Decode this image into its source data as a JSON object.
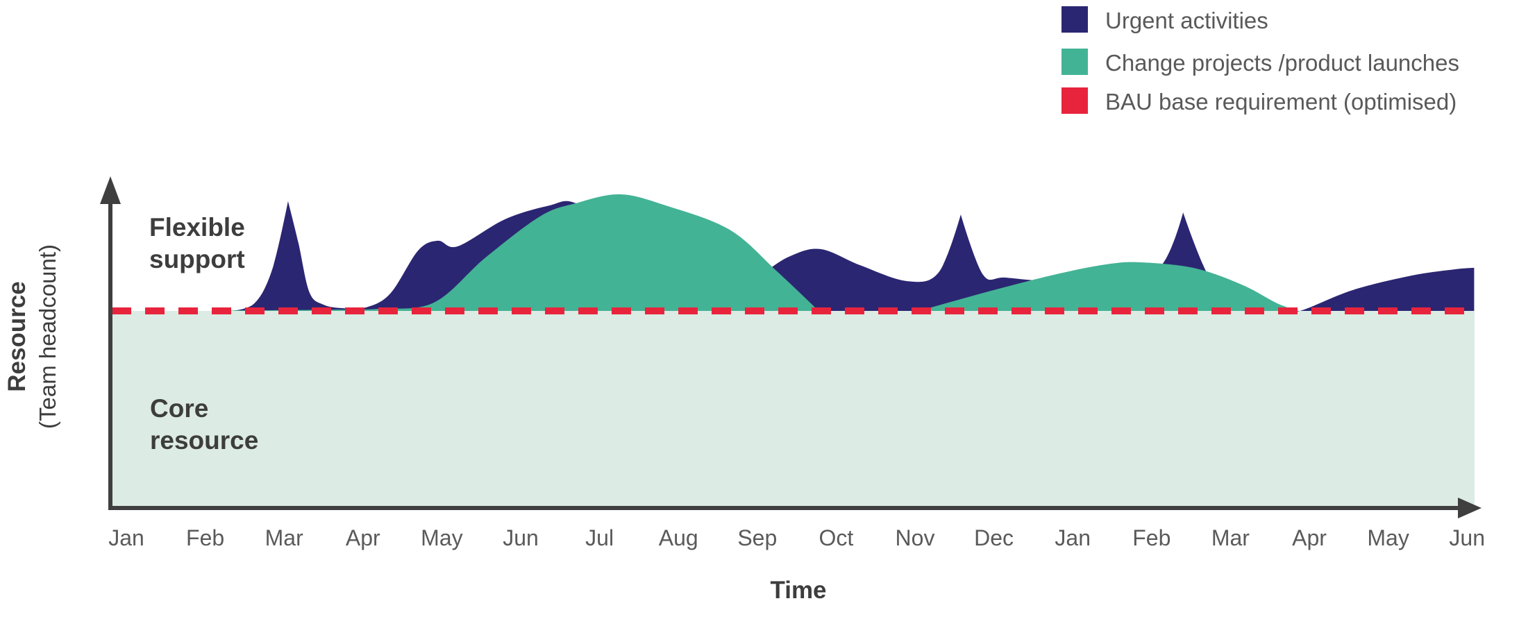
{
  "legend": {
    "items": [
      {
        "label": "Urgent activities",
        "color": "#2b2672"
      },
      {
        "label": "Change projects /product launches",
        "color": "#43b395"
      },
      {
        "label": "BAU base requirement (optimised)",
        "color": "#e8243c"
      }
    ],
    "text_color": "#595959"
  },
  "labels": {
    "y_axis_bold": "Resource",
    "y_axis_sub": "(Team headcount)",
    "x_axis": "Time",
    "flexible_support_line1": "Flexible",
    "flexible_support_line2": "support",
    "core_resource_line1": "Core",
    "core_resource_line2": "resource"
  },
  "colors": {
    "urgent": "#2b2672",
    "change": "#43b395",
    "bau_line": "#e8243c",
    "core_band": "#dcebe4",
    "axis": "#3f3f3f",
    "annotation_text": "#3d3d3d",
    "tick_text": "#5a5a5a"
  },
  "chart_data": {
    "type": "area",
    "title": "",
    "xlabel": "Time",
    "ylabel": "Resource (Team headcount)",
    "x_tick_labels": [
      "Jan",
      "Feb",
      "Mar",
      "Apr",
      "May",
      "Jun",
      "Jul",
      "Aug",
      "Sep",
      "Oct",
      "Nov",
      "Dec",
      "Jan",
      "Feb",
      "Mar",
      "Apr",
      "May",
      "Jun"
    ],
    "x_domain_months": [
      0,
      17.09
    ],
    "value_units": "relative team headcount; BAU base requirement = 10, core resource band = 0 to 10",
    "grid": false,
    "legend_position": "top-right",
    "series": [
      {
        "name": "Urgent activities",
        "style": "filled-area",
        "color": "#2b2672",
        "points": [
          [
            1.3,
            10.0,
            "c"
          ],
          [
            1.62,
            10.35
          ],
          [
            1.85,
            12.0
          ],
          [
            2.05,
            15.27,
            "c"
          ],
          [
            2.18,
            13.3
          ],
          [
            2.32,
            10.9
          ],
          [
            2.5,
            10.3
          ],
          [
            2.75,
            10.13
          ],
          [
            3.05,
            10.18
          ],
          [
            3.35,
            10.85
          ],
          [
            3.7,
            12.9
          ],
          [
            3.95,
            13.37
          ],
          [
            4.2,
            13.1
          ],
          [
            4.8,
            14.4
          ],
          [
            5.35,
            15.05
          ],
          [
            5.7,
            15.17
          ],
          [
            6.3,
            13.6
          ],
          [
            6.9,
            11.8
          ],
          [
            7.5,
            11.35
          ],
          [
            7.95,
            11.6
          ],
          [
            8.4,
            12.6
          ],
          [
            8.8,
            12.97
          ],
          [
            9.3,
            12.2
          ],
          [
            9.9,
            11.43
          ],
          [
            10.3,
            11.85
          ],
          [
            10.58,
            14.63,
            "c"
          ],
          [
            10.86,
            11.75
          ],
          [
            11.15,
            11.6
          ],
          [
            11.8,
            11.45
          ],
          [
            12.5,
            11.9
          ],
          [
            13.1,
            12.1
          ],
          [
            13.4,
            14.73,
            "c"
          ],
          [
            13.8,
            11.15
          ],
          [
            14.3,
            10.2
          ],
          [
            14.68,
            10.0,
            "c"
          ],
          [
            14.9,
            10.02
          ],
          [
            15.55,
            11.0
          ],
          [
            16.3,
            11.7
          ],
          [
            16.85,
            12.0
          ],
          [
            17.09,
            12.07
          ]
        ]
      },
      {
        "name": "Change projects /product launches",
        "style": "filled-area",
        "color": "#43b395",
        "points": [
          [
            1.2,
            10.02,
            "c"
          ],
          [
            2.6,
            10.06
          ],
          [
            3.2,
            10.1
          ],
          [
            3.9,
            10.4
          ],
          [
            4.55,
            12.55
          ],
          [
            5.25,
            14.55
          ],
          [
            5.7,
            15.17
          ],
          [
            6.26,
            15.6
          ],
          [
            6.85,
            15.05
          ],
          [
            7.65,
            13.9
          ],
          [
            8.25,
            11.9
          ],
          [
            8.78,
            10.0,
            "c"
          ],
          [
            9.4,
            10.0,
            "c"
          ],
          [
            10.05,
            10.0,
            "c"
          ],
          [
            10.9,
            10.9
          ],
          [
            11.8,
            11.77
          ],
          [
            12.45,
            12.25
          ],
          [
            12.88,
            12.33
          ],
          [
            13.55,
            12.05
          ],
          [
            14.15,
            11.25
          ],
          [
            14.6,
            10.35
          ],
          [
            14.87,
            10.0,
            "c"
          ]
        ]
      },
      {
        "name": "BAU base requirement (optimised)",
        "style": "dashed-line",
        "color": "#e8243c",
        "value": 10
      },
      {
        "name": "Core resource",
        "style": "band",
        "color": "#dcebe4",
        "from": 0,
        "to": 10
      }
    ],
    "annotations": [
      {
        "text": "Flexible support",
        "region": "above BAU base line"
      },
      {
        "text": "Core resource",
        "region": "below BAU base line"
      }
    ]
  }
}
